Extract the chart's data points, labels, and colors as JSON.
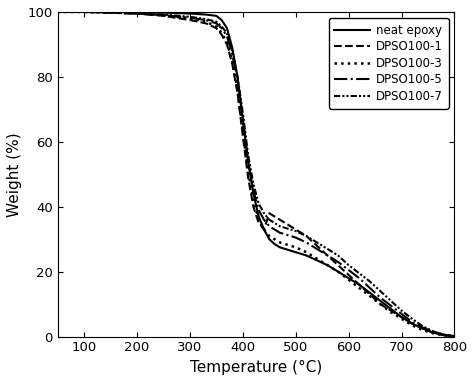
{
  "title": "",
  "xlabel": "Temperature (°C)",
  "ylabel": "Weight (%)",
  "xlim": [
    50,
    800
  ],
  "ylim": [
    0,
    100
  ],
  "xticks": [
    100,
    200,
    300,
    400,
    500,
    600,
    700,
    800
  ],
  "yticks": [
    0,
    20,
    40,
    60,
    80,
    100
  ],
  "curves": {
    "neat_epoxy": {
      "x": [
        50,
        100,
        150,
        200,
        250,
        300,
        330,
        350,
        360,
        370,
        380,
        390,
        400,
        410,
        420,
        430,
        440,
        450,
        460,
        470,
        480,
        490,
        500,
        520,
        540,
        560,
        580,
        600,
        620,
        640,
        660,
        680,
        700,
        720,
        740,
        760,
        780,
        800
      ],
      "y": [
        100,
        100,
        100,
        100,
        99.8,
        99.5,
        99.2,
        98.8,
        97.5,
        95,
        89,
        80,
        67,
        54,
        44,
        37,
        33,
        30,
        28.5,
        27.5,
        27,
        26.5,
        26,
        25,
        23.5,
        22,
        20,
        18,
        16,
        13.5,
        11,
        8.5,
        6,
        4,
        2.5,
        1.2,
        0.4,
        0.1
      ]
    },
    "dpso100_1": {
      "x": [
        50,
        100,
        150,
        200,
        250,
        300,
        330,
        350,
        360,
        370,
        380,
        390,
        400,
        410,
        420,
        430,
        440,
        450,
        460,
        470,
        480,
        490,
        500,
        520,
        540,
        560,
        580,
        600,
        620,
        640,
        660,
        680,
        700,
        720,
        740,
        760,
        780,
        800
      ],
      "y": [
        100,
        100,
        99.8,
        99.5,
        98.8,
        97.5,
        96.5,
        95,
        93,
        90,
        84,
        75,
        62,
        49,
        40,
        35,
        33,
        38,
        37,
        36,
        35,
        34,
        33,
        31,
        28,
        25,
        22,
        19,
        16,
        13,
        10,
        8,
        6,
        4,
        2.5,
        1.2,
        0.5,
        0.1
      ]
    },
    "dpso100_3": {
      "x": [
        50,
        100,
        150,
        200,
        250,
        300,
        330,
        350,
        360,
        370,
        380,
        390,
        400,
        410,
        420,
        430,
        440,
        450,
        460,
        470,
        480,
        490,
        500,
        520,
        540,
        560,
        580,
        600,
        620,
        640,
        660,
        680,
        700,
        720,
        740,
        760,
        780,
        800
      ],
      "y": [
        100,
        100,
        99.8,
        99.5,
        99.0,
        98.0,
        97,
        95.5,
        93.5,
        90.5,
        85,
        76,
        63,
        51,
        42,
        36,
        33,
        31,
        30,
        29,
        28.5,
        28,
        27.5,
        26,
        24,
        22,
        20,
        17.5,
        15,
        12.5,
        10,
        7.5,
        5.5,
        3.5,
        2,
        1,
        0.4,
        0.1
      ]
    },
    "dpso100_5": {
      "x": [
        50,
        100,
        150,
        200,
        250,
        300,
        330,
        350,
        360,
        370,
        380,
        390,
        400,
        410,
        420,
        430,
        440,
        450,
        460,
        470,
        480,
        490,
        500,
        520,
        540,
        560,
        580,
        600,
        620,
        640,
        660,
        680,
        700,
        720,
        740,
        760,
        780,
        800
      ],
      "y": [
        100,
        100,
        99.8,
        99.5,
        99.0,
        98.2,
        97.5,
        96.5,
        95,
        92.5,
        87,
        79,
        67,
        54,
        45,
        39,
        36,
        34,
        33,
        32,
        31.5,
        31,
        30.5,
        29,
        27,
        25,
        23,
        20.5,
        18,
        15,
        12,
        9.5,
        7,
        4.5,
        2.8,
        1.5,
        0.6,
        0.1
      ]
    },
    "dpso100_7": {
      "x": [
        50,
        100,
        150,
        200,
        250,
        300,
        330,
        350,
        360,
        370,
        380,
        390,
        400,
        410,
        420,
        430,
        440,
        450,
        460,
        470,
        480,
        490,
        500,
        520,
        540,
        560,
        580,
        600,
        620,
        640,
        660,
        680,
        700,
        720,
        740,
        760,
        780,
        800
      ],
      "y": [
        100,
        100,
        99.8,
        99.5,
        99.2,
        98.5,
        97.8,
        97,
        95.5,
        93.5,
        88,
        80,
        69,
        56,
        47,
        41,
        38,
        36,
        35,
        34,
        33.5,
        33,
        32.5,
        31,
        29,
        27,
        25,
        22,
        19.5,
        17,
        14,
        11,
        8,
        5.5,
        3.2,
        1.6,
        0.6,
        0.1
      ]
    }
  },
  "linestyles": [
    [
      "-",
      1.5
    ],
    [
      "--",
      1.5
    ],
    [
      ":",
      1.8
    ],
    [
      "-.",
      1.5
    ],
    [
      0,
      1.5
    ]
  ],
  "labels": [
    "neat epoxy",
    "DPSO100-1",
    "DPSO100-3",
    "DPSO100-5",
    "DPSO100-7"
  ],
  "background_color": "#ffffff",
  "legend_fontsize": 8.5,
  "axis_fontsize": 11,
  "tick_fontsize": 9.5
}
